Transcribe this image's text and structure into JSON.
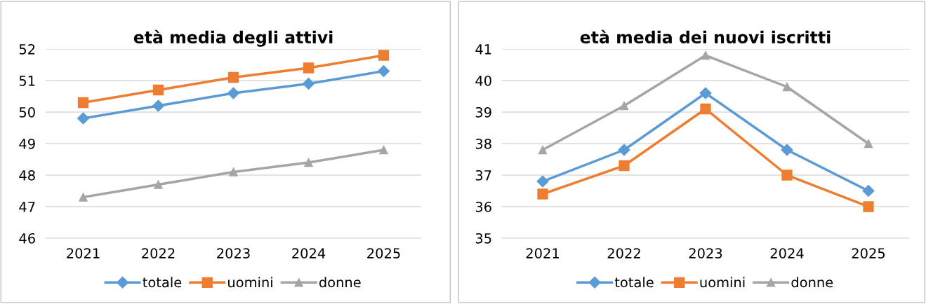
{
  "chart_data": [
    {
      "type": "line",
      "title": "età media degli attivi",
      "categories": [
        "2021",
        "2022",
        "2023",
        "2024",
        "2025"
      ],
      "ylim": [
        46,
        52
      ],
      "yticks": [
        46,
        47,
        48,
        49,
        50,
        51,
        52
      ],
      "grid": "y",
      "legend": "bottom",
      "series": [
        {
          "name": "totale",
          "color": "#5b9bd5",
          "marker": "diamond",
          "values": [
            49.8,
            50.2,
            50.6,
            50.9,
            51.3
          ]
        },
        {
          "name": "uomini",
          "color": "#ed7d31",
          "marker": "square",
          "values": [
            50.3,
            50.7,
            51.1,
            51.4,
            51.8
          ]
        },
        {
          "name": "donne",
          "color": "#a5a5a5",
          "marker": "triangle",
          "values": [
            47.3,
            47.7,
            48.1,
            48.4,
            48.8
          ]
        }
      ]
    },
    {
      "type": "line",
      "title": "età media dei nuovi iscritti",
      "categories": [
        "2021",
        "2022",
        "2023",
        "2024",
        "2025"
      ],
      "ylim": [
        35,
        41
      ],
      "yticks": [
        35,
        36,
        37,
        38,
        39,
        40,
        41
      ],
      "grid": "y",
      "legend": "bottom",
      "series": [
        {
          "name": "totale",
          "color": "#5b9bd5",
          "marker": "diamond",
          "values": [
            36.8,
            37.8,
            39.6,
            37.8,
            36.5
          ]
        },
        {
          "name": "uomini",
          "color": "#ed7d31",
          "marker": "square",
          "values": [
            36.4,
            37.3,
            39.1,
            37.0,
            36.0
          ]
        },
        {
          "name": "donne",
          "color": "#a5a5a5",
          "marker": "triangle",
          "values": [
            37.8,
            39.2,
            40.8,
            39.8,
            38.0
          ]
        }
      ]
    }
  ]
}
